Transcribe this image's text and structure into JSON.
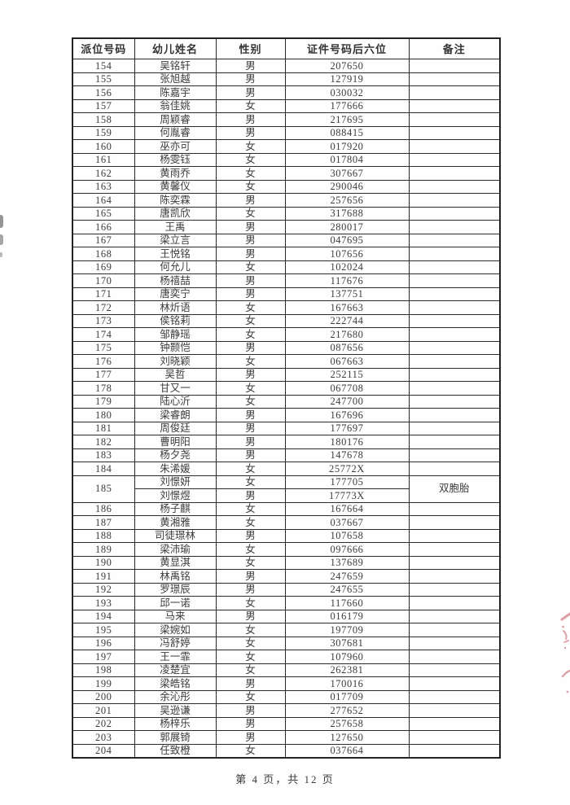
{
  "document": {
    "footer": "第 4 页，共 12 页"
  },
  "colors": {
    "stamp_red": "#c4565e",
    "table_border": "#2b2b2b",
    "text": "#3c3c3c"
  },
  "artifacts": {
    "left_edge_marks": "dark scan marks at left page edge",
    "right_edge_stamp": "partial red seal stamp at right page edge"
  },
  "table": {
    "headers": [
      "派位号码",
      "幼儿姓名",
      "性别",
      "证件号码后六位",
      "备注"
    ],
    "rows": [
      {
        "no": "154",
        "name": "吴铭轩",
        "gender": "男",
        "id6": "207650",
        "note": ""
      },
      {
        "no": "155",
        "name": "张旭越",
        "gender": "男",
        "id6": "127919",
        "note": ""
      },
      {
        "no": "156",
        "name": "陈嘉宇",
        "gender": "男",
        "id6": "030032",
        "note": ""
      },
      {
        "no": "157",
        "name": "翁佳姚",
        "gender": "女",
        "id6": "177666",
        "note": ""
      },
      {
        "no": "158",
        "name": "周颖睿",
        "gender": "男",
        "id6": "217695",
        "note": ""
      },
      {
        "no": "159",
        "name": "何胤睿",
        "gender": "男",
        "id6": "088415",
        "note": ""
      },
      {
        "no": "160",
        "name": "巫亦可",
        "gender": "女",
        "id6": "017920",
        "note": ""
      },
      {
        "no": "161",
        "name": "杨雯钰",
        "gender": "女",
        "id6": "017804",
        "note": ""
      },
      {
        "no": "162",
        "name": "黄雨乔",
        "gender": "女",
        "id6": "307667",
        "note": ""
      },
      {
        "no": "163",
        "name": "黄馨仪",
        "gender": "女",
        "id6": "290046",
        "note": ""
      },
      {
        "no": "164",
        "name": "陈奕霖",
        "gender": "男",
        "id6": "257656",
        "note": ""
      },
      {
        "no": "165",
        "name": "唐凯欣",
        "gender": "女",
        "id6": "317688",
        "note": ""
      },
      {
        "no": "166",
        "name": "王禹",
        "gender": "男",
        "id6": "280017",
        "note": ""
      },
      {
        "no": "167",
        "name": "梁立言",
        "gender": "男",
        "id6": "047695",
        "note": ""
      },
      {
        "no": "168",
        "name": "王悦铭",
        "gender": "男",
        "id6": "107656",
        "note": ""
      },
      {
        "no": "169",
        "name": "何允儿",
        "gender": "女",
        "id6": "102024",
        "note": ""
      },
      {
        "no": "170",
        "name": "杨禧喆",
        "gender": "男",
        "id6": "117676",
        "note": ""
      },
      {
        "no": "171",
        "name": "唐奕宁",
        "gender": "男",
        "id6": "137751",
        "note": ""
      },
      {
        "no": "172",
        "name": "林炘语",
        "gender": "女",
        "id6": "167663",
        "note": ""
      },
      {
        "no": "173",
        "name": "侯铭莉",
        "gender": "女",
        "id6": "222744",
        "note": ""
      },
      {
        "no": "174",
        "name": "邹静瑶",
        "gender": "女",
        "id6": "217680",
        "note": ""
      },
      {
        "no": "175",
        "name": "钟颢恺",
        "gender": "男",
        "id6": "087656",
        "note": ""
      },
      {
        "no": "176",
        "name": "刘晓颖",
        "gender": "女",
        "id6": "067663",
        "note": ""
      },
      {
        "no": "177",
        "name": "吴哲",
        "gender": "男",
        "id6": "252115",
        "note": ""
      },
      {
        "no": "178",
        "name": "甘又一",
        "gender": "女",
        "id6": "067708",
        "note": ""
      },
      {
        "no": "179",
        "name": "陆心沂",
        "gender": "女",
        "id6": "247700",
        "note": ""
      },
      {
        "no": "180",
        "name": "梁睿朗",
        "gender": "男",
        "id6": "167696",
        "note": ""
      },
      {
        "no": "181",
        "name": "周俊廷",
        "gender": "男",
        "id6": "177697",
        "note": ""
      },
      {
        "no": "182",
        "name": "曹明阳",
        "gender": "男",
        "id6": "180176",
        "note": ""
      },
      {
        "no": "183",
        "name": "杨夕尧",
        "gender": "男",
        "id6": "147678",
        "note": ""
      },
      {
        "no": "184",
        "name": "朱浠媛",
        "gender": "女",
        "id6": "25772X",
        "note": ""
      },
      {
        "no": "185",
        "note": "双胞胎",
        "sub": [
          {
            "name": "刘憬妍",
            "gender": "女",
            "id6": "177705"
          },
          {
            "name": "刘憬煜",
            "gender": "男",
            "id6": "17773X"
          }
        ]
      },
      {
        "no": "186",
        "name": "杨子麒",
        "gender": "女",
        "id6": "167664",
        "note": ""
      },
      {
        "no": "187",
        "name": "黄湘雅",
        "gender": "女",
        "id6": "037667",
        "note": ""
      },
      {
        "no": "188",
        "name": "司徒璟林",
        "gender": "男",
        "id6": "107658",
        "note": ""
      },
      {
        "no": "189",
        "name": "梁沛瑜",
        "gender": "女",
        "id6": "097666",
        "note": ""
      },
      {
        "no": "190",
        "name": "黄显淇",
        "gender": "女",
        "id6": "137689",
        "note": ""
      },
      {
        "no": "191",
        "name": "林禹铭",
        "gender": "男",
        "id6": "247659",
        "note": ""
      },
      {
        "no": "192",
        "name": "罗璟辰",
        "gender": "男",
        "id6": "247655",
        "note": ""
      },
      {
        "no": "193",
        "name": "邱一诺",
        "gender": "女",
        "id6": "117660",
        "note": ""
      },
      {
        "no": "194",
        "name": "马来",
        "gender": "男",
        "id6": "016179",
        "note": ""
      },
      {
        "no": "195",
        "name": "梁婉如",
        "gender": "女",
        "id6": "197709",
        "note": ""
      },
      {
        "no": "196",
        "name": "冯舒婷",
        "gender": "女",
        "id6": "307681",
        "note": ""
      },
      {
        "no": "197",
        "name": "王一霏",
        "gender": "女",
        "id6": "107960",
        "note": ""
      },
      {
        "no": "198",
        "name": "凌楚宜",
        "gender": "女",
        "id6": "262381",
        "note": ""
      },
      {
        "no": "199",
        "name": "梁皓铭",
        "gender": "男",
        "id6": "170016",
        "note": ""
      },
      {
        "no": "200",
        "name": "余沁彤",
        "gender": "女",
        "id6": "017709",
        "note": ""
      },
      {
        "no": "201",
        "name": "吴逊谦",
        "gender": "男",
        "id6": "277652",
        "note": ""
      },
      {
        "no": "202",
        "name": "杨梓乐",
        "gender": "男",
        "id6": "257658",
        "note": ""
      },
      {
        "no": "203",
        "name": "郭展锜",
        "gender": "男",
        "id6": "127650",
        "note": ""
      },
      {
        "no": "204",
        "name": "任致橙",
        "gender": "女",
        "id6": "037664",
        "note": ""
      }
    ]
  }
}
